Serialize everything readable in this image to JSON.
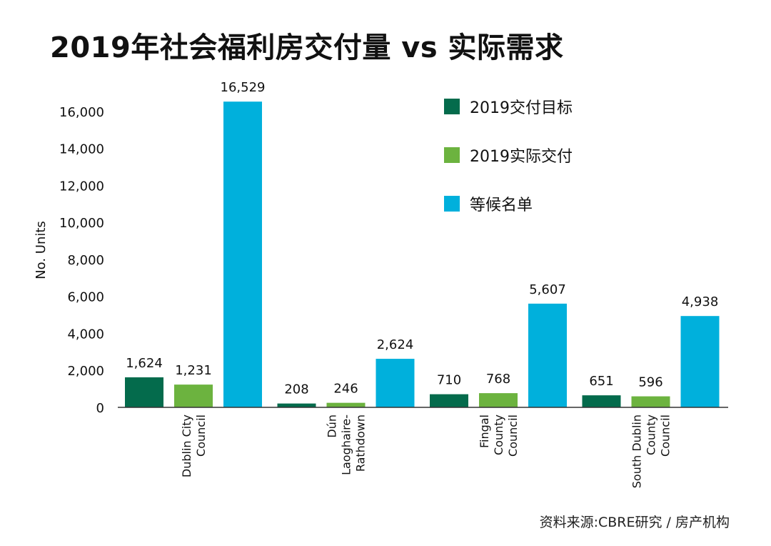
{
  "title": "2019年社会福利房交付量 vs 实际需求",
  "source": "资料来源:CBRE研究 / 房产机构",
  "chart_data": {
    "type": "bar",
    "ylabel": "No. Units",
    "ylim": [
      0,
      17000
    ],
    "yticks": [
      0,
      2000,
      4000,
      6000,
      8000,
      10000,
      12000,
      14000,
      16000
    ],
    "ytick_labels": [
      "0",
      "2,000",
      "4,000",
      "6,000",
      "8,000",
      "10,000",
      "12,000",
      "14,000",
      "16,000"
    ],
    "legend_position": "top-right",
    "categories": [
      [
        "Dublin City",
        "Council"
      ],
      [
        "Dún",
        "Laoghaire-",
        "Rathdown"
      ],
      [
        "Fingal",
        "County",
        "Council"
      ],
      [
        "South Dublin",
        "County",
        "Council"
      ]
    ],
    "series": [
      {
        "name": "2019交付目标",
        "color": "#046b4c",
        "values": [
          1624,
          208,
          710,
          651
        ],
        "labels": [
          "1,624",
          "208",
          "710",
          "651"
        ]
      },
      {
        "name": "2019实际交付",
        "color": "#6cb33f",
        "values": [
          1231,
          246,
          768,
          596
        ],
        "labels": [
          "1,231",
          "246",
          "768",
          "596"
        ]
      },
      {
        "name": "等候名单",
        "color": "#00b0dc",
        "values": [
          16529,
          2624,
          5607,
          4938
        ],
        "labels": [
          "16,529",
          "2,624",
          "5,607",
          "4,938"
        ]
      }
    ]
  }
}
